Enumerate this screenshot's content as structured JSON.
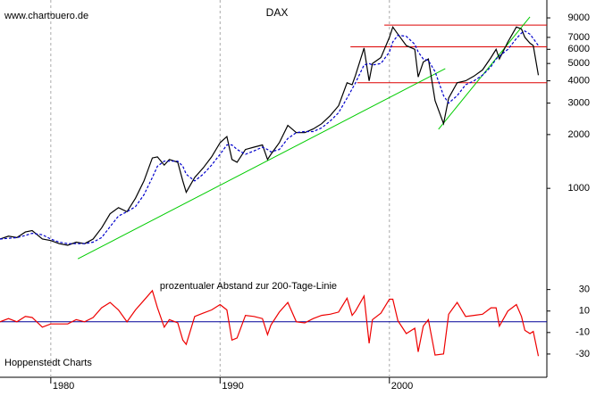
{
  "chart_data": [
    {
      "type": "line",
      "title": "DAX",
      "source": "www.chartbuero.de",
      "log_scale": true,
      "x": [
        1977.0,
        1977.5,
        1978.0,
        1978.5,
        1978.9,
        1979.5,
        1980.0,
        1980.5,
        1981.0,
        1981.5,
        1982.0,
        1982.5,
        1983.0,
        1983.5,
        1984.0,
        1984.5,
        1985.0,
        1985.5,
        1986.0,
        1986.3,
        1986.7,
        1987.0,
        1987.5,
        1987.8,
        1988.0,
        1988.5,
        1989.0,
        1989.5,
        1990.0,
        1990.4,
        1990.7,
        1991.0,
        1991.5,
        1992.0,
        1992.5,
        1992.8,
        1993.0,
        1993.5,
        1994.0,
        1994.5,
        1995.0,
        1995.5,
        1996.0,
        1996.5,
        1997.0,
        1997.5,
        1997.8,
        1998.0,
        1998.5,
        1998.8,
        1999.0,
        1999.5,
        2000.0,
        2000.2,
        2000.5,
        2001.0,
        2001.5,
        2001.7,
        2002.0,
        2002.3,
        2002.7,
        2003.2,
        2003.5,
        2004.0,
        2004.5,
        2005.0,
        2005.5,
        2006.0,
        2006.3,
        2006.5,
        2007.0,
        2007.5,
        2007.8,
        2008.0,
        2008.3,
        2008.5,
        2008.8
      ],
      "series": [
        {
          "color": "#000000",
          "values": [
            520,
            540,
            530,
            570,
            580,
            520,
            510,
            490,
            480,
            500,
            490,
            520,
            600,
            720,
            780,
            740,
            880,
            1100,
            1480,
            1500,
            1350,
            1450,
            1400,
            1100,
            950,
            1150,
            1300,
            1500,
            1800,
            1950,
            1450,
            1400,
            1650,
            1700,
            1750,
            1450,
            1550,
            1800,
            2250,
            2050,
            2050,
            2150,
            2300,
            2550,
            2900,
            3900,
            3800,
            4300,
            6100,
            4000,
            5000,
            5400,
            7000,
            8000,
            7300,
            6300,
            6000,
            4200,
            5100,
            5300,
            3100,
            2300,
            3200,
            3900,
            4000,
            4250,
            4600,
            5400,
            6000,
            5300,
            6600,
            8000,
            7800,
            7000,
            6500,
            6300,
            4300
          ]
        },
        {
          "color": "#0000cc",
          "dashed": true,
          "values": [
            520,
            525,
            530,
            545,
            560,
            550,
            520,
            500,
            490,
            490,
            490,
            500,
            530,
            610,
            700,
            740,
            790,
            920,
            1150,
            1330,
            1420,
            1420,
            1420,
            1330,
            1200,
            1100,
            1200,
            1350,
            1550,
            1750,
            1750,
            1650,
            1550,
            1620,
            1700,
            1650,
            1600,
            1650,
            1900,
            2050,
            2080,
            2080,
            2180,
            2380,
            2650,
            3200,
            3600,
            3900,
            4900,
            5000,
            4900,
            5000,
            5800,
            6600,
            7200,
            7100,
            6400,
            5800,
            5300,
            5200,
            4500,
            3300,
            3000,
            3300,
            3800,
            4000,
            4300,
            4800,
            5300,
            5500,
            6000,
            6900,
            7400,
            7600,
            7300,
            6900,
            6300
          ]
        }
      ],
      "hlines": [
        {
          "value": 8200,
          "from": 1999.7,
          "color": "#dd0000"
        },
        {
          "value": 6200,
          "from": 1997.7,
          "color": "#dd0000"
        },
        {
          "value": 3900,
          "from": 1998.1,
          "color": "#dd0000"
        }
      ],
      "trendlines": [
        {
          "x": [
            1981.6,
            2003.3
          ],
          "values": [
            403,
            4680
          ],
          "color": "#00cc00"
        },
        {
          "x": [
            2002.9,
            2008.3
          ],
          "values": [
            2140,
            9120
          ],
          "color": "#00cc00"
        }
      ],
      "xlim": [
        1977,
        2009.3
      ],
      "xticks": [
        1980,
        1990,
        2000
      ],
      "ylim": [
        340,
        10700
      ],
      "yticks": [
        1000,
        2000,
        3000,
        4000,
        5000,
        6000,
        7000,
        9000
      ]
    },
    {
      "type": "line",
      "title": "prozentualer Abstand zur 200-Tage-Linie",
      "annotation": "Hoppenstedt Charts",
      "x": [
        1977.0,
        1977.5,
        1978.0,
        1978.5,
        1978.9,
        1979.5,
        1980.0,
        1980.5,
        1981.0,
        1981.5,
        1982.0,
        1982.5,
        1983.0,
        1983.5,
        1984.0,
        1984.5,
        1985.0,
        1985.5,
        1986.0,
        1986.3,
        1986.7,
        1987.0,
        1987.5,
        1987.8,
        1988.0,
        1988.5,
        1989.0,
        1989.5,
        1990.0,
        1990.4,
        1990.7,
        1991.0,
        1991.5,
        1992.0,
        1992.5,
        1992.8,
        1993.0,
        1993.5,
        1994.0,
        1994.5,
        1995.0,
        1995.5,
        1996.0,
        1996.5,
        1997.0,
        1997.5,
        1997.8,
        1998.0,
        1998.5,
        1998.8,
        1999.0,
        1999.5,
        2000.0,
        2000.2,
        2000.5,
        2001.0,
        2001.5,
        2001.7,
        2002.0,
        2002.3,
        2002.7,
        2003.2,
        2003.5,
        2004.0,
        2004.5,
        2005.0,
        2005.5,
        2006.0,
        2006.3,
        2006.5,
        2007.0,
        2007.5,
        2007.8,
        2008.0,
        2008.3,
        2008.5,
        2008.8
      ],
      "series": [
        {
          "color": "#ee0000",
          "values": [
            0,
            3,
            0,
            5,
            4,
            -5,
            -2,
            -2,
            -2,
            2,
            0,
            4,
            13,
            18,
            11,
            0,
            11,
            20,
            29,
            13,
            -5,
            2,
            -1,
            -17,
            -21,
            5,
            8,
            11,
            16,
            11,
            -17,
            -15,
            6,
            5,
            3,
            -12,
            -3,
            9,
            18,
            0,
            -1,
            3,
            6,
            7,
            9,
            22,
            6,
            10,
            24,
            -20,
            2,
            8,
            21,
            21,
            1,
            -11,
            -6,
            -28,
            -4,
            2,
            -31,
            -30,
            7,
            18,
            5,
            6,
            7,
            13,
            13,
            -4,
            10,
            16,
            5,
            -8,
            -11,
            -9,
            -32
          ]
        }
      ],
      "hline": {
        "value": 0,
        "color": "#000099"
      },
      "xlim": [
        1977,
        2009.3
      ],
      "ylim": [
        -45,
        38
      ],
      "yticks": [
        30,
        10,
        -10,
        -30
      ]
    }
  ]
}
